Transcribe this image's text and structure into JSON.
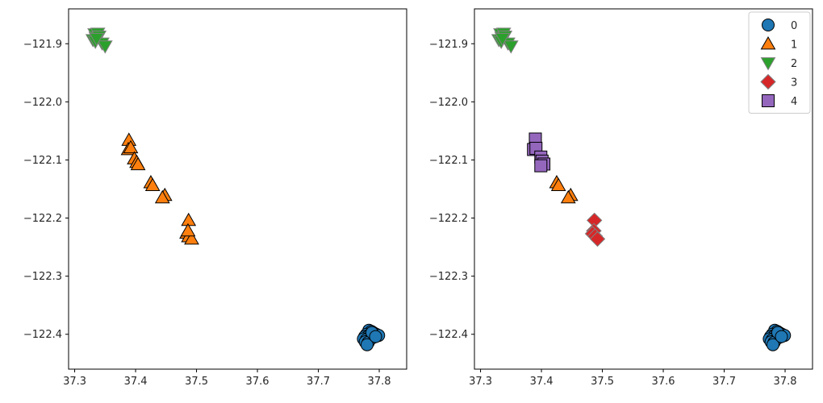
{
  "colors": {
    "0": "#1f77b4",
    "1": "#ff7f0e",
    "2": "#2ca02c",
    "3": "#d62728",
    "4": "#9467bd"
  },
  "markers": {
    "0": "circle",
    "1": "triangle-up",
    "2": "triangle-down",
    "3": "diamond",
    "4": "square"
  },
  "chart_data": [
    {
      "type": "scatter",
      "xlim": [
        37.29,
        37.845
      ],
      "ylim": [
        -122.46,
        -121.84
      ],
      "xticks": [
        37.3,
        37.4,
        37.5,
        37.6,
        37.7,
        37.8
      ],
      "xtick_labels": [
        "37.3",
        "37.4",
        "37.5",
        "37.6",
        "37.7",
        "37.8"
      ],
      "yticks": [
        -121.9,
        -122.0,
        -122.1,
        -122.2,
        -122.3,
        -122.4
      ],
      "ytick_labels": [
        "−121.9",
        "−122.0",
        "−122.1",
        "−122.2",
        "−122.3",
        "−122.4"
      ],
      "grid": false,
      "legend": null,
      "series": [
        {
          "cluster": 2,
          "points": [
            [
              37.333,
              -121.883
            ],
            [
              37.335,
              -121.889
            ],
            [
              37.338,
              -121.882
            ],
            [
              37.33,
              -121.893
            ],
            [
              37.34,
              -121.887
            ],
            [
              37.334,
              -121.896
            ],
            [
              37.345,
              -121.899
            ],
            [
              37.35,
              -121.904
            ],
            [
              37.336,
              -121.891
            ]
          ]
        },
        {
          "cluster": 1,
          "points": [
            [
              37.389,
              -122.066
            ],
            [
              37.388,
              -122.082
            ],
            [
              37.392,
              -122.079
            ],
            [
              37.398,
              -122.098
            ],
            [
              37.402,
              -122.104
            ],
            [
              37.404,
              -122.108
            ],
            [
              37.425,
              -122.139
            ],
            [
              37.428,
              -122.144
            ],
            [
              37.448,
              -122.161
            ],
            [
              37.444,
              -122.165
            ],
            [
              37.487,
              -122.204
            ],
            [
              37.484,
              -122.226
            ],
            [
              37.487,
              -122.232
            ],
            [
              37.492,
              -122.236
            ],
            [
              37.486,
              -122.222
            ]
          ]
        },
        {
          "cluster": 0,
          "points": [
            [
              37.783,
              -122.393
            ],
            [
              37.787,
              -122.395
            ],
            [
              37.79,
              -122.397
            ],
            [
              37.779,
              -122.4
            ],
            [
              37.784,
              -122.401
            ],
            [
              37.789,
              -122.401
            ],
            [
              37.795,
              -122.4
            ],
            [
              37.799,
              -122.402
            ],
            [
              37.776,
              -122.404
            ],
            [
              37.781,
              -122.404
            ],
            [
              37.786,
              -122.405
            ],
            [
              37.791,
              -122.405
            ],
            [
              37.774,
              -122.408
            ],
            [
              37.779,
              -122.409
            ],
            [
              37.785,
              -122.409
            ],
            [
              37.777,
              -122.413
            ],
            [
              37.782,
              -122.414
            ],
            [
              37.78,
              -122.418
            ],
            [
              37.788,
              -122.397
            ],
            [
              37.794,
              -122.404
            ]
          ]
        }
      ]
    },
    {
      "type": "scatter",
      "xlim": [
        37.29,
        37.845
      ],
      "ylim": [
        -122.46,
        -121.84
      ],
      "xticks": [
        37.3,
        37.4,
        37.5,
        37.6,
        37.7,
        37.8
      ],
      "xtick_labels": [
        "37.3",
        "37.4",
        "37.5",
        "37.6",
        "37.7",
        "37.8"
      ],
      "yticks": [
        -121.9,
        -122.0,
        -122.1,
        -122.2,
        -122.3,
        -122.4
      ],
      "ytick_labels": [
        "−121.9",
        "−122.0",
        "−122.1",
        "−122.2",
        "−122.3",
        "−122.4"
      ],
      "grid": false,
      "legend": {
        "placement": "top-right",
        "entries": [
          "0",
          "1",
          "2",
          "3",
          "4"
        ]
      },
      "series": [
        {
          "cluster": 2,
          "name": "2",
          "points": [
            [
              37.333,
              -121.883
            ],
            [
              37.335,
              -121.889
            ],
            [
              37.338,
              -121.882
            ],
            [
              37.33,
              -121.893
            ],
            [
              37.34,
              -121.887
            ],
            [
              37.334,
              -121.896
            ],
            [
              37.345,
              -121.899
            ],
            [
              37.35,
              -121.904
            ],
            [
              37.336,
              -121.891
            ]
          ]
        },
        {
          "cluster": 4,
          "name": "4",
          "points": [
            [
              37.39,
              -122.064
            ],
            [
              37.387,
              -122.082
            ],
            [
              37.391,
              -122.08
            ],
            [
              37.399,
              -122.095
            ],
            [
              37.401,
              -122.102
            ],
            [
              37.404,
              -122.107
            ],
            [
              37.399,
              -122.11
            ]
          ]
        },
        {
          "cluster": 1,
          "name": "1",
          "points": [
            [
              37.425,
              -122.139
            ],
            [
              37.428,
              -122.144
            ],
            [
              37.448,
              -122.161
            ],
            [
              37.444,
              -122.165
            ]
          ]
        },
        {
          "cluster": 3,
          "name": "3",
          "points": [
            [
              37.487,
              -122.204
            ],
            [
              37.486,
              -122.222
            ],
            [
              37.484,
              -122.227
            ],
            [
              37.488,
              -122.231
            ],
            [
              37.492,
              -122.236
            ]
          ]
        },
        {
          "cluster": 0,
          "name": "0",
          "points": [
            [
              37.783,
              -122.393
            ],
            [
              37.787,
              -122.395
            ],
            [
              37.79,
              -122.397
            ],
            [
              37.779,
              -122.4
            ],
            [
              37.784,
              -122.401
            ],
            [
              37.789,
              -122.401
            ],
            [
              37.795,
              -122.4
            ],
            [
              37.799,
              -122.402
            ],
            [
              37.776,
              -122.404
            ],
            [
              37.781,
              -122.404
            ],
            [
              37.786,
              -122.405
            ],
            [
              37.791,
              -122.405
            ],
            [
              37.774,
              -122.408
            ],
            [
              37.779,
              -122.409
            ],
            [
              37.785,
              -122.409
            ],
            [
              37.777,
              -122.413
            ],
            [
              37.782,
              -122.414
            ],
            [
              37.78,
              -122.418
            ],
            [
              37.788,
              -122.397
            ],
            [
              37.794,
              -122.404
            ]
          ]
        }
      ]
    }
  ]
}
